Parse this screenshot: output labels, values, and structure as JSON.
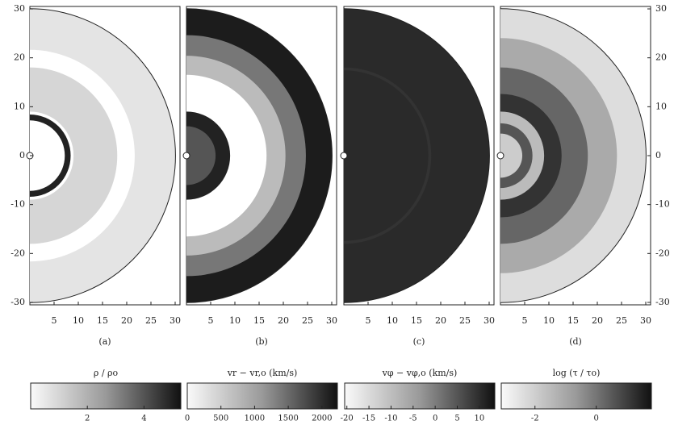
{
  "chart_data": [
    {
      "type": "image",
      "label": "(a)",
      "xlim": [
        0,
        31
      ],
      "ylim": [
        -30.5,
        30.5
      ],
      "xticks": [
        5,
        10,
        15,
        20,
        25,
        30
      ],
      "yticks": [
        -30,
        -20,
        -10,
        0,
        10,
        20,
        30
      ],
      "yaxis": "left",
      "colorbar": {
        "label": "ρ / ρo",
        "lim": [
          0,
          5.3
        ],
        "ticks": [
          2,
          4
        ]
      }
    },
    {
      "type": "image",
      "label": "(b)",
      "xlim": [
        0,
        31
      ],
      "ylim": [
        -30.5,
        30.5
      ],
      "xticks": [
        5,
        10,
        15,
        20,
        25,
        30
      ],
      "colorbar": {
        "label": "vr − vr,o   (km/s)",
        "lim": [
          0,
          2230
        ],
        "ticks": [
          0,
          500,
          1000,
          1500,
          2000
        ]
      }
    },
    {
      "type": "image",
      "label": "(c)",
      "xlim": [
        0,
        31
      ],
      "ylim": [
        -30.5,
        30.5
      ],
      "xticks": [
        5,
        10,
        15,
        20,
        25,
        30
      ],
      "colorbar": {
        "label": "vφ − vφ,o   (km/s)",
        "lim": [
          -20.5,
          13.5
        ],
        "ticks": [
          -20,
          -15,
          -10,
          -5,
          0,
          5,
          10
        ]
      }
    },
    {
      "type": "image",
      "label": "(d)",
      "xlim": [
        0,
        31
      ],
      "ylim": [
        -30.5,
        30.5
      ],
      "xticks": [
        5,
        10,
        15,
        20,
        25,
        30
      ],
      "yticks": [
        -30,
        -20,
        -10,
        0,
        10,
        20,
        30
      ],
      "yaxis": "right",
      "colorbar": {
        "label": "log (τ / τo)",
        "lim": [
          -3.1,
          1.8
        ],
        "ticks": [
          -2,
          0
        ]
      }
    }
  ]
}
